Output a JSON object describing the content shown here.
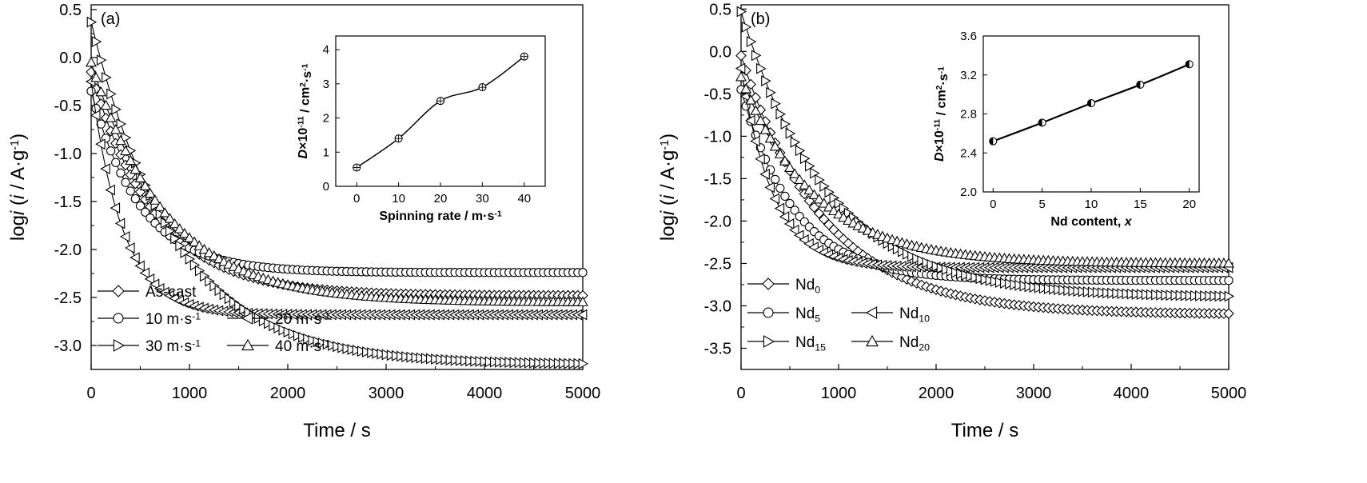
{
  "chart_data": [
    {
      "type": "scatter",
      "panel_label": "(a)",
      "xlabel": "Time / s",
      "ylabel_parts": [
        "log",
        "i",
        " (",
        "i",
        " / A·g",
        "-1",
        ")"
      ],
      "xlim": [
        0,
        5000
      ],
      "ylim": [
        -3.25,
        0.55
      ],
      "xticks": [
        0,
        1000,
        2000,
        3000,
        4000,
        5000
      ],
      "yticks": [
        0.5,
        0.0,
        -0.5,
        -1.0,
        -1.5,
        -2.0,
        -2.5,
        -3.0
      ],
      "ytick_labels": [
        "0.5",
        "0.0",
        "-0.5",
        "-1.0",
        "-1.5",
        "-2.0",
        "-2.5",
        "-3.0"
      ],
      "legend_position": "bottom-left",
      "legend_rows": [
        [
          "As-cast"
        ],
        [
          "10 m·s-1",
          "20 m·s-1"
        ],
        [
          "30 m·s-1",
          "40 m·s-1"
        ]
      ],
      "series": [
        {
          "name": "As-cast",
          "marker": "diamond",
          "y0": -0.15,
          "yinf": -2.48,
          "tau": 650
        },
        {
          "name": "10 m·s-1",
          "marker": "circle",
          "y0": -0.35,
          "yinf": -2.24,
          "tau": 500
        },
        {
          "name": "20 m·s-1",
          "marker": "triangle-left",
          "y0": -0.25,
          "yinf": -2.68,
          "tau": 320
        },
        {
          "name": "30 m·s-1",
          "marker": "triangle-right",
          "y0": 0.37,
          "yinf": -3.2,
          "tau": 850
        },
        {
          "name": "40 m·s-1",
          "marker": "triangle-up",
          "y0": -0.05,
          "yinf": -2.55,
          "tau": 760
        }
      ],
      "inset": {
        "type": "line",
        "xlabel": "Spinning rate / m·s-1",
        "ylabel": "D×10-11 / cm2·s-1",
        "x": [
          0,
          10,
          20,
          30,
          40
        ],
        "y": [
          0.55,
          1.4,
          2.5,
          2.9,
          3.8
        ],
        "xlim": [
          -5,
          45
        ],
        "ylim": [
          0,
          4.4
        ],
        "xticks": [
          0,
          10,
          20,
          30,
          40
        ],
        "yticks": [
          0,
          1,
          2,
          3,
          4
        ],
        "ytick_labels": [
          "0",
          "1",
          "2",
          "3",
          "4"
        ]
      }
    },
    {
      "type": "scatter",
      "panel_label": "(b)",
      "xlabel": "Time / s",
      "ylabel_parts": [
        "log",
        "i",
        " (",
        "i",
        " / A·g",
        "-1",
        ")"
      ],
      "xlim": [
        0,
        5000
      ],
      "ylim": [
        -3.75,
        0.55
      ],
      "xticks": [
        0,
        1000,
        2000,
        3000,
        4000,
        5000
      ],
      "yticks": [
        0.5,
        0.0,
        -0.5,
        -1.0,
        -1.5,
        -2.0,
        -2.5,
        -3.0,
        -3.5
      ],
      "ytick_labels": [
        "0.5",
        "0.0",
        "-0.5",
        "-1.0",
        "-1.5",
        "-2.0",
        "-2.5",
        "-3.0",
        "-3.5"
      ],
      "legend_position": "bottom-left",
      "legend_rows": [
        [
          "Nd0"
        ],
        [
          "Nd5",
          "Nd10"
        ],
        [
          "Nd15",
          "Nd20"
        ]
      ],
      "series": [
        {
          "name": "Nd0",
          "marker": "diamond",
          "y0": -0.05,
          "yinf": -3.1,
          "tau": 850
        },
        {
          "name": "Nd5",
          "marker": "circle",
          "y0": -0.45,
          "yinf": -2.7,
          "tau": 550
        },
        {
          "name": "Nd10",
          "marker": "triangle-left",
          "y0": -0.2,
          "yinf": -2.55,
          "tau": 330
        },
        {
          "name": "Nd15",
          "marker": "triangle-right",
          "y0": 0.47,
          "yinf": -2.9,
          "tau": 900
        },
        {
          "name": "Nd20",
          "marker": "triangle-up",
          "y0": -0.3,
          "yinf": -2.5,
          "tau": 750
        }
      ],
      "inset": {
        "type": "line",
        "xlabel": "Nd content, x",
        "ylabel": "D×10-11 / cm2·s-1",
        "x": [
          0,
          5,
          10,
          15,
          20
        ],
        "y": [
          2.52,
          2.71,
          2.91,
          3.1,
          3.31
        ],
        "xlim": [
          -1,
          21
        ],
        "ylim": [
          2.0,
          3.6
        ],
        "xticks": [
          0,
          5,
          10,
          15,
          20
        ],
        "yticks": [
          2.0,
          2.4,
          2.8,
          3.2,
          3.6
        ],
        "ytick_labels": [
          "2.0",
          "2.4",
          "2.8",
          "3.2",
          "3.6"
        ]
      }
    }
  ]
}
